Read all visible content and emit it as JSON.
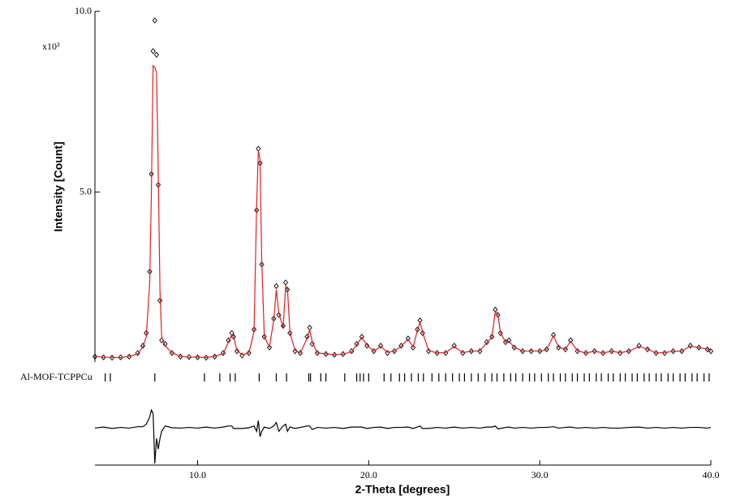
{
  "chart_data": {
    "type": "scatter",
    "y_label": "Intensity [Count]",
    "x_label": "2-Theta [degrees]",
    "y_multiplier": "x10³",
    "xlim": [
      4,
      40
    ],
    "ylim": [
      0.3,
      10
    ],
    "y2lim": [
      -1.05,
      1.05
    ],
    "xticks": [
      {
        "value": 10,
        "label": "10.0"
      },
      {
        "value": 20,
        "label": "20.0"
      },
      {
        "value": 30,
        "label": "30.0"
      },
      {
        "value": 40,
        "label": "40.0"
      }
    ],
    "yticks": [
      {
        "value": 5,
        "label": "5.0"
      },
      {
        "value": 10,
        "label": "10.0"
      }
    ],
    "x": [
      4.0,
      4.5,
      5.0,
      5.5,
      6.0,
      6.5,
      6.8,
      7.0,
      7.2,
      7.3,
      7.4,
      7.5,
      7.6,
      7.7,
      7.8,
      7.9,
      8.1,
      8.5,
      9.0,
      9.5,
      10.0,
      10.5,
      11.0,
      11.5,
      11.8,
      12.0,
      12.1,
      12.3,
      12.6,
      13.0,
      13.3,
      13.45,
      13.55,
      13.65,
      13.75,
      13.9,
      14.2,
      14.45,
      14.6,
      14.75,
      15.0,
      15.15,
      15.25,
      15.4,
      15.7,
      16.0,
      16.4,
      16.55,
      16.7,
      17.0,
      17.5,
      18.0,
      18.5,
      19.0,
      19.3,
      19.6,
      19.9,
      20.3,
      20.7,
      21.1,
      21.5,
      21.9,
      22.3,
      22.6,
      22.85,
      23.0,
      23.15,
      23.5,
      24.0,
      24.5,
      25.0,
      25.5,
      26.0,
      26.5,
      26.9,
      27.2,
      27.4,
      27.55,
      27.7,
      28.0,
      28.2,
      28.5,
      29.0,
      29.5,
      30.0,
      30.4,
      30.8,
      31.1,
      31.5,
      31.8,
      32.2,
      32.7,
      33.2,
      33.7,
      34.2,
      34.7,
      35.2,
      35.8,
      36.3,
      36.8,
      37.3,
      37.8,
      38.3,
      38.8,
      39.3,
      39.8,
      40.0
    ],
    "series": [
      {
        "type": "scatter",
        "color": "#000000",
        "values": [
          0.45,
          0.43,
          0.42,
          0.43,
          0.45,
          0.55,
          0.75,
          1.1,
          2.8,
          5.5,
          8.9,
          9.75,
          8.8,
          5.2,
          2.0,
          0.9,
          0.8,
          0.55,
          0.45,
          0.44,
          0.43,
          0.42,
          0.45,
          0.55,
          0.9,
          1.1,
          1.0,
          0.6,
          0.48,
          0.55,
          1.2,
          4.5,
          6.2,
          5.8,
          3.0,
          1.0,
          0.7,
          1.5,
          2.4,
          1.6,
          1.3,
          2.5,
          2.3,
          1.1,
          0.6,
          0.55,
          1.0,
          1.25,
          0.8,
          0.55,
          0.52,
          0.5,
          0.52,
          0.6,
          0.8,
          1.0,
          0.75,
          0.6,
          0.75,
          0.55,
          0.6,
          0.75,
          0.95,
          0.7,
          1.2,
          1.45,
          1.1,
          0.6,
          0.55,
          0.55,
          0.75,
          0.55,
          0.6,
          0.6,
          0.85,
          1.0,
          1.75,
          1.6,
          1.1,
          0.85,
          0.9,
          0.7,
          0.6,
          0.6,
          0.6,
          0.65,
          1.05,
          0.7,
          0.65,
          0.9,
          0.6,
          0.55,
          0.6,
          0.55,
          0.6,
          0.55,
          0.6,
          0.75,
          0.65,
          0.55,
          0.55,
          0.6,
          0.6,
          0.75,
          0.7,
          0.65,
          0.6
        ]
      },
      {
        "type": "line",
        "color": "#e02020",
        "values": [
          0.46,
          0.43,
          0.43,
          0.42,
          0.46,
          0.52,
          0.72,
          1.0,
          2.5,
          5.0,
          8.5,
          8.45,
          8.3,
          5.6,
          2.3,
          1.0,
          0.75,
          0.55,
          0.46,
          0.43,
          0.44,
          0.42,
          0.46,
          0.53,
          0.85,
          1.05,
          1.02,
          0.62,
          0.5,
          0.55,
          1.15,
          4.6,
          6.15,
          5.9,
          3.1,
          1.0,
          0.72,
          1.45,
          2.3,
          1.65,
          1.25,
          2.4,
          2.35,
          1.1,
          0.62,
          0.55,
          0.95,
          1.2,
          0.85,
          0.55,
          0.53,
          0.5,
          0.52,
          0.58,
          0.78,
          0.98,
          0.77,
          0.6,
          0.73,
          0.57,
          0.6,
          0.74,
          0.93,
          0.72,
          1.18,
          1.4,
          1.12,
          0.62,
          0.55,
          0.56,
          0.73,
          0.56,
          0.6,
          0.61,
          0.83,
          0.98,
          1.7,
          1.62,
          1.12,
          0.85,
          0.88,
          0.71,
          0.6,
          0.61,
          0.6,
          0.64,
          1.02,
          0.71,
          0.65,
          0.88,
          0.61,
          0.55,
          0.6,
          0.55,
          0.6,
          0.56,
          0.6,
          0.73,
          0.66,
          0.55,
          0.56,
          0.6,
          0.6,
          0.74,
          0.7,
          0.66,
          0.6
        ]
      },
      {
        "type": "line",
        "axis": "y2",
        "color": "#000000",
        "values": [
          -0.01,
          0.02,
          -0.02,
          0.01,
          -0.01,
          0.03,
          0.03,
          0.1,
          0.3,
          0.5,
          0.4,
          -1.0,
          -0.3,
          -0.6,
          -0.3,
          -0.1,
          0.05,
          0,
          -0.01,
          0.01,
          -0.01,
          0.02,
          -0.01,
          0.02,
          0.05,
          0.05,
          -0.02,
          -0.02,
          -0.02,
          0,
          0.05,
          -0.1,
          0.2,
          -0.25,
          -0.1,
          0.02,
          -0.02,
          0.05,
          0.15,
          -0.1,
          0.05,
          0.1,
          -0.1,
          0.02,
          -0.02,
          0.01,
          0.05,
          0.05,
          -0.05,
          0.01,
          -0.01,
          0.01,
          -0.02,
          0.02,
          0.02,
          0.02,
          -0.02,
          0.01,
          0.02,
          -0.02,
          0.01,
          0.01,
          0.02,
          -0.02,
          0.02,
          0.05,
          -0.02,
          -0.02,
          0.01,
          -0.01,
          0.02,
          -0.01,
          0.01,
          -0.01,
          0.02,
          0.02,
          0.05,
          -0.03,
          -0.02,
          0.01,
          0.02,
          -0.01,
          0.01,
          -0.01,
          0.01,
          0.01,
          0.03,
          -0.01,
          0.01,
          0.02,
          -0.01,
          0.01,
          -0.01,
          0.01,
          -0.01,
          -0.01,
          0.01,
          0.02,
          -0.01,
          0.01,
          -0.01,
          0.01,
          -0.01,
          0.01,
          0.01,
          -0.01,
          0.01
        ]
      }
    ],
    "reflections": {
      "name": "Al-MOF-TCPPCu",
      "color": "#1a7a1a",
      "positions": [
        4.6,
        4.9,
        7.5,
        10.4,
        11.3,
        11.9,
        12.2,
        13.6,
        14.6,
        15.2,
        16.5,
        16.6,
        17.2,
        17.5,
        18.6,
        19.3,
        19.5,
        19.7,
        20.0,
        20.9,
        21.3,
        21.8,
        22.1,
        22.5,
        22.9,
        23.2,
        23.7,
        24.1,
        24.5,
        24.9,
        25.3,
        25.6,
        26.0,
        26.4,
        26.8,
        27.2,
        27.5,
        27.9,
        28.3,
        28.6,
        29.0,
        29.4,
        29.7,
        30.1,
        30.5,
        30.8,
        31.2,
        31.5,
        31.9,
        32.2,
        32.6,
        32.9,
        33.3,
        33.6,
        34.0,
        34.3,
        34.7,
        35.0,
        35.4,
        35.7,
        36.1,
        36.4,
        36.8,
        37.1,
        37.5,
        37.8,
        38.2,
        38.5,
        38.9,
        39.2,
        39.6,
        39.9
      ]
    }
  }
}
